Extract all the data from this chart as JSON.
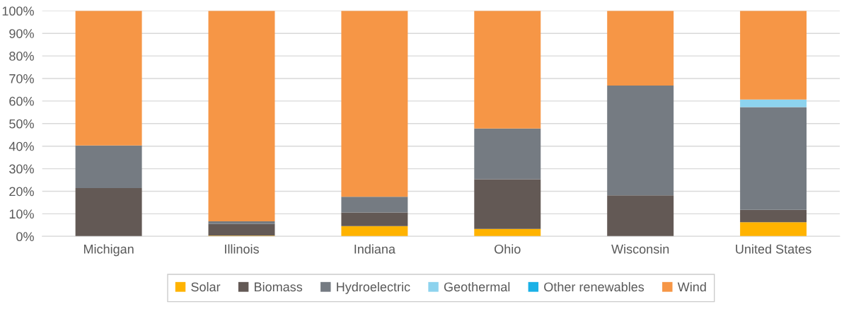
{
  "chart_data": {
    "type": "bar",
    "stacked": true,
    "categories": [
      "Michigan",
      "Illinois",
      "Indiana",
      "Ohio",
      "Wisconsin",
      "United States"
    ],
    "series": [
      {
        "name": "Solar",
        "color": "#ffb300",
        "values": [
          0,
          0.3,
          4.6,
          3.3,
          0,
          6.3
        ]
      },
      {
        "name": "Biomass",
        "color": "#635955",
        "values": [
          21.4,
          5.3,
          6.0,
          22.0,
          18.2,
          5.5
        ]
      },
      {
        "name": "Hydroelectric",
        "color": "#757b82",
        "values": [
          18.9,
          1.1,
          7.0,
          22.5,
          48.7,
          45.5
        ]
      },
      {
        "name": "Geothermal",
        "color": "#8dd3ee",
        "values": [
          0,
          0,
          0,
          0,
          0,
          3.4
        ]
      },
      {
        "name": "Other renewables",
        "color": "#1ab1e6",
        "values": [
          0,
          0,
          0,
          0,
          0,
          0
        ]
      },
      {
        "name": "Wind",
        "color": "#f69646",
        "values": [
          59.7,
          93.3,
          82.4,
          52.2,
          33.1,
          39.3
        ]
      }
    ],
    "ylim": [
      0,
      100
    ],
    "yticks": [
      {
        "value": 0,
        "label": "0%"
      },
      {
        "value": 10,
        "label": "10%"
      },
      {
        "value": 20,
        "label": "20%"
      },
      {
        "value": 30,
        "label": "30%"
      },
      {
        "value": 40,
        "label": "40%"
      },
      {
        "value": 50,
        "label": "50%"
      },
      {
        "value": 60,
        "label": "60%"
      },
      {
        "value": 70,
        "label": "70%"
      },
      {
        "value": 80,
        "label": "80%"
      },
      {
        "value": 90,
        "label": "90%"
      },
      {
        "value": 100,
        "label": "100%"
      }
    ],
    "grid": "y",
    "legend": "bottom"
  }
}
